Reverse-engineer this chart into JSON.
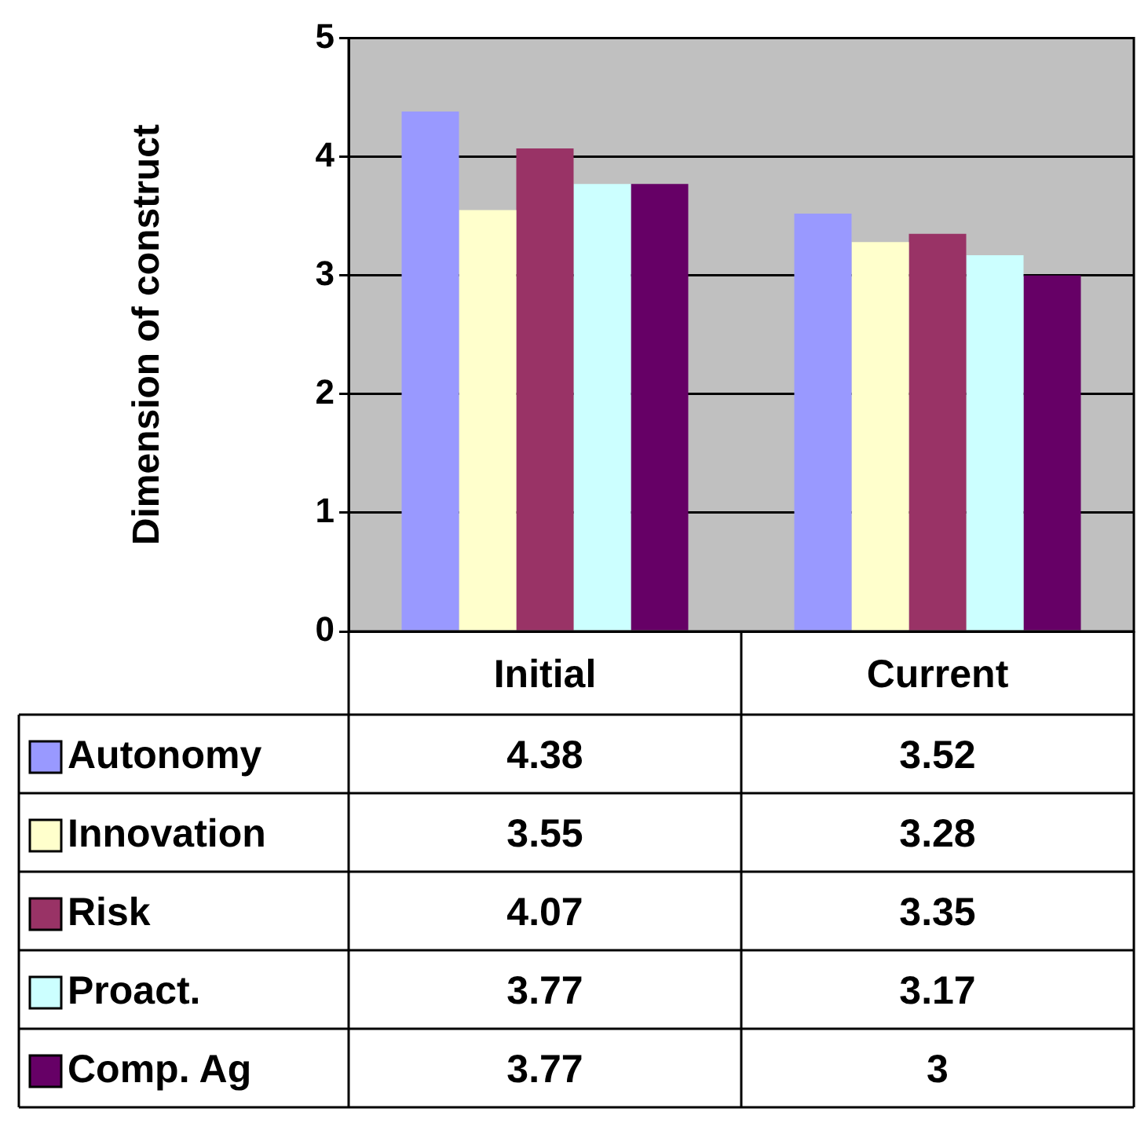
{
  "chart_data": {
    "type": "bar",
    "ylabel": "Dimension of construct",
    "categories": [
      "Initial",
      "Current"
    ],
    "series": [
      {
        "name": "Autonomy",
        "color": "#9999ff",
        "values": [
          4.38,
          3.52
        ]
      },
      {
        "name": "Innovation",
        "color": "#ffffcc",
        "values": [
          3.55,
          3.28
        ]
      },
      {
        "name": "Risk",
        "color": "#993366",
        "values": [
          4.07,
          3.35
        ]
      },
      {
        "name": "Proact.",
        "color": "#ccffff",
        "values": [
          3.77,
          3.17
        ]
      },
      {
        "name": "Comp. Ag",
        "color": "#660066",
        "values": [
          3.77,
          3
        ]
      }
    ],
    "ylim": [
      0,
      5
    ],
    "yticks": [
      0,
      1,
      2,
      3,
      4,
      5
    ],
    "grid": "y",
    "legend": "bottom left",
    "data_labels": true
  }
}
